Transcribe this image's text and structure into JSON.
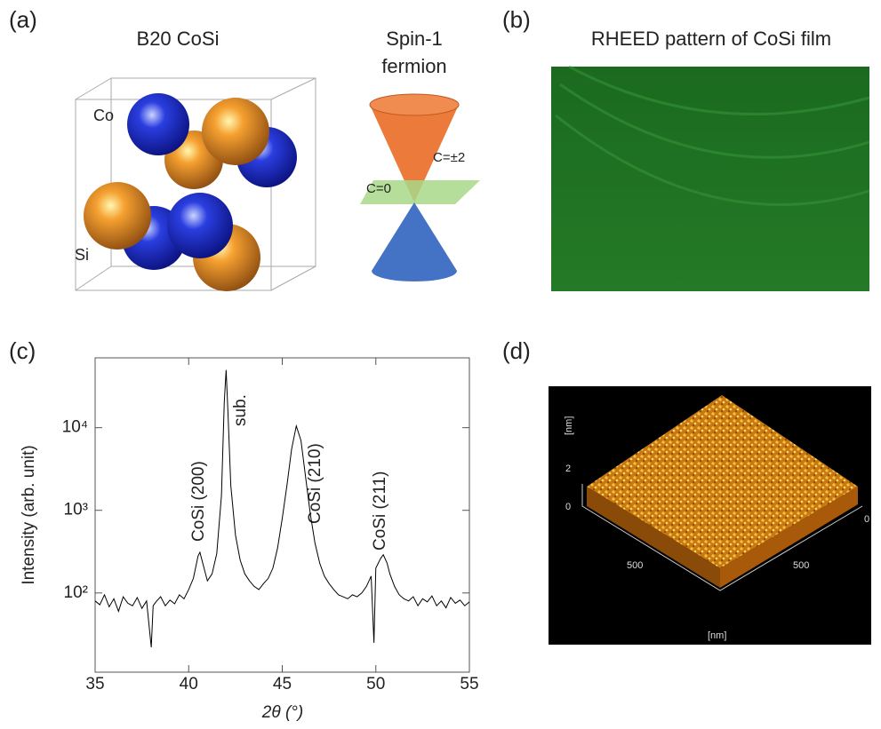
{
  "panels": {
    "a": {
      "label": "(a)",
      "title": "B20 CoSi",
      "atom_labels": [
        "Co",
        "Si"
      ],
      "fermion_title": [
        "Spin-1",
        "fermion"
      ],
      "chern_labels": [
        "C=±2",
        "C=0"
      ]
    },
    "b": {
      "label": "(b)",
      "title": "RHEED pattern of CoSi film"
    },
    "d": {
      "label": "(d)",
      "axis_labels": [
        "[nm]",
        "2",
        "0",
        "500",
        "500",
        "0",
        "[nm]"
      ]
    }
  },
  "chart_data": {
    "type": "line",
    "label": "(c)",
    "xlabel": "2θ (°)",
    "ylabel": "Intensity (arb. unit)",
    "annotations": [
      "CoSi (200)",
      "sub.",
      "CoSi (210)",
      "CoSi (211)"
    ],
    "log_y": true,
    "color": "#000000",
    "xlim": [
      35,
      55
    ],
    "xticks": [
      35,
      40,
      45,
      50,
      55
    ],
    "ylim": [
      11,
      70000
    ],
    "yticks": [
      {
        "value": 100,
        "label": "10²"
      },
      {
        "value": 1000,
        "label": "10³"
      },
      {
        "value": 10000,
        "label": "10⁴"
      }
    ],
    "x": [
      35,
      35.25,
      35.5,
      35.75,
      36,
      36.25,
      36.5,
      36.75,
      37,
      37.25,
      37.5,
      37.75,
      38,
      38.1,
      38.25,
      38.5,
      38.75,
      39,
      39.25,
      39.5,
      39.75,
      40,
      40.25,
      40.5,
      40.6,
      40.75,
      41,
      41.25,
      41.5,
      41.75,
      41.9,
      42,
      42.1,
      42.25,
      42.5,
      42.75,
      43,
      43.25,
      43.5,
      43.75,
      44,
      44.25,
      44.5,
      44.75,
      45,
      45.25,
      45.5,
      45.75,
      46,
      46.25,
      46.5,
      46.75,
      47,
      47.25,
      47.5,
      47.75,
      48,
      48.25,
      48.5,
      48.75,
      49,
      49.25,
      49.5,
      49.75,
      49.9,
      50,
      50.25,
      50.4,
      50.6,
      50.75,
      51,
      51.25,
      51.5,
      51.75,
      52,
      52.25,
      52.5,
      52.75,
      53,
      53.25,
      53.5,
      53.75,
      54,
      54.25,
      54.5,
      54.75,
      55
    ],
    "values": [
      80,
      72,
      95,
      68,
      85,
      60,
      90,
      75,
      70,
      88,
      65,
      80,
      22,
      70,
      78,
      90,
      70,
      82,
      74,
      95,
      85,
      110,
      150,
      280,
      310,
      230,
      140,
      170,
      300,
      1500,
      20000,
      50000,
      15000,
      2000,
      500,
      250,
      170,
      140,
      120,
      110,
      130,
      150,
      200,
      350,
      800,
      2000,
      5500,
      10500,
      7000,
      2500,
      900,
      400,
      230,
      160,
      130,
      110,
      95,
      90,
      85,
      95,
      90,
      100,
      120,
      160,
      25,
      200,
      260,
      290,
      230,
      170,
      120,
      95,
      85,
      80,
      90,
      70,
      85,
      78,
      92,
      70,
      80,
      66,
      88,
      75,
      82,
      70,
      78
    ]
  }
}
